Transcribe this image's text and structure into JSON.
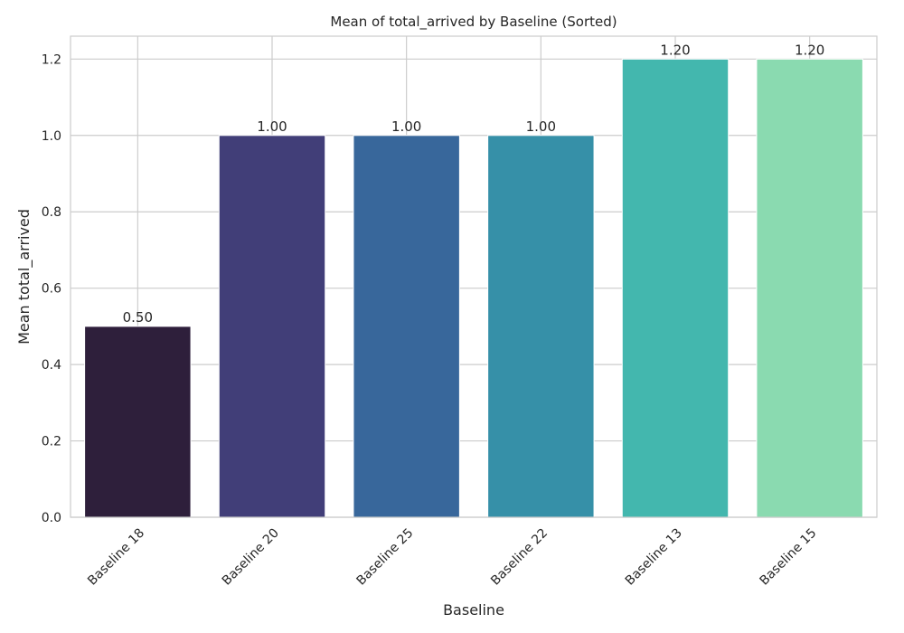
{
  "chart_data": {
    "type": "bar",
    "title": "Mean of total_arrived by Baseline (Sorted)",
    "xlabel": "Baseline",
    "ylabel": "Mean total_arrived",
    "categories": [
      "Baseline 18",
      "Baseline 20",
      "Baseline 25",
      "Baseline 22",
      "Baseline 13",
      "Baseline 15"
    ],
    "values": [
      0.5,
      1.0,
      1.0,
      1.0,
      1.2,
      1.2
    ],
    "value_labels": [
      "0.50",
      "1.00",
      "1.00",
      "1.00",
      "1.20",
      "1.20"
    ],
    "colors": [
      "#2e1f3b",
      "#413e78",
      "#38679b",
      "#3690a8",
      "#43b7ae",
      "#8adab0"
    ],
    "ylim": [
      0,
      1.26
    ],
    "yticks": [
      0.0,
      0.2,
      0.4,
      0.6,
      0.8,
      1.0,
      1.2
    ],
    "ytick_labels": [
      "0.0",
      "0.2",
      "0.4",
      "0.6",
      "0.8",
      "1.0",
      "1.2"
    ],
    "grid": true,
    "legend": "none"
  }
}
